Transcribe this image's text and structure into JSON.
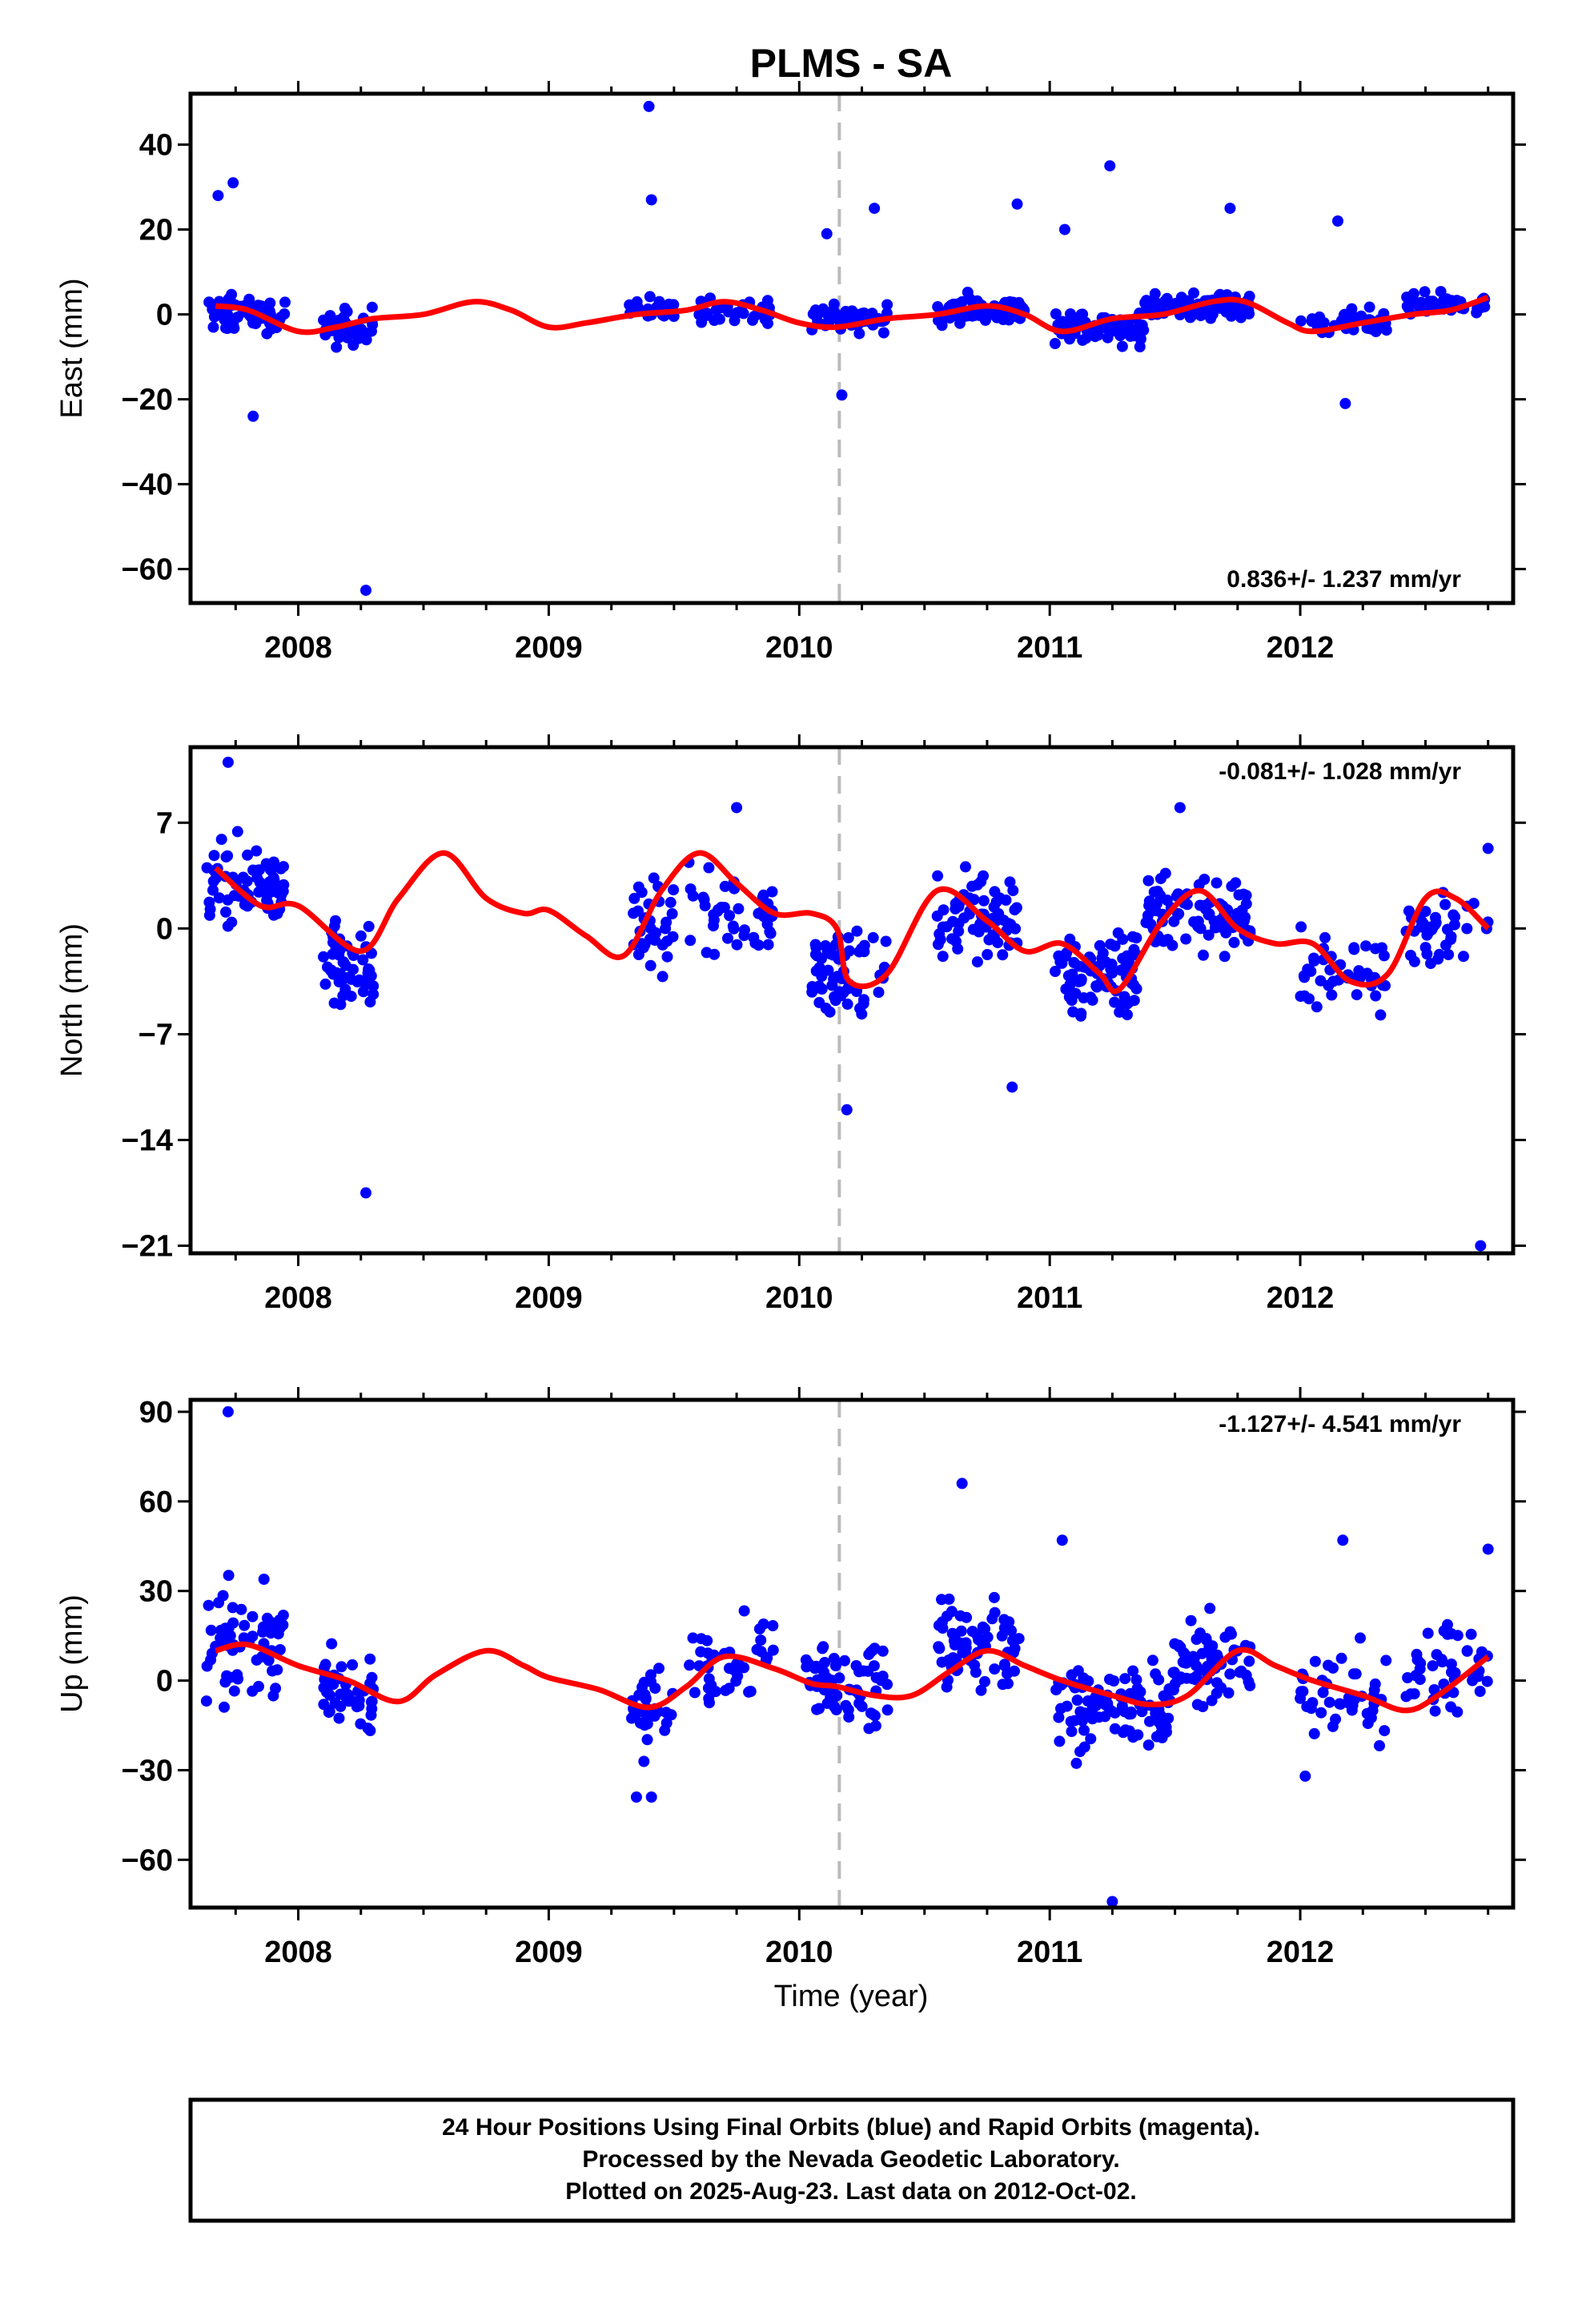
{
  "title": "PLMS - SA",
  "xlabel": "Time (year)",
  "footer_lines": [
    "24 Hour Positions Using Final Orbits (blue) and Rapid Orbits (magenta).",
    "Processed by the Nevada Geodetic Laboratory.",
    "Plotted on 2025-Aug-23. Last data on 2012-Oct-02."
  ],
  "colors": {
    "final_orbits": "#0000ff",
    "model": "#ff0000",
    "event_line": "#bbbbbb",
    "frame": "#000000"
  },
  "chart_data": [
    {
      "type": "scatter",
      "panel": "east",
      "ylabel": "East (mm)",
      "rate_text": "0.836+/- 1.237 mm/yr",
      "xlim": [
        2007.57,
        2012.85
      ],
      "ylim": [
        -68,
        52
      ],
      "yticks": [
        40,
        20,
        0,
        -20,
        -40,
        -60
      ],
      "ytick_labels": [
        "40",
        "20",
        "0",
        "−20",
        "−40",
        "−60"
      ],
      "xticks": [
        2008,
        2009,
        2010,
        2011,
        2012
      ],
      "xtick_labels": [
        "2008",
        "2009",
        "2010",
        "2011",
        "2012"
      ],
      "event_x": 2010.16,
      "outliers": [
        [
          2007.68,
          28
        ],
        [
          2007.74,
          31
        ],
        [
          2007.82,
          -24
        ],
        [
          2008.27,
          -65
        ],
        [
          2009.4,
          49
        ],
        [
          2009.41,
          27
        ],
        [
          2010.11,
          19
        ],
        [
          2010.17,
          -19
        ],
        [
          2010.3,
          25
        ],
        [
          2010.87,
          26
        ],
        [
          2011.06,
          20
        ],
        [
          2011.24,
          35
        ],
        [
          2011.72,
          25
        ],
        [
          2012.15,
          22
        ],
        [
          2012.18,
          -21
        ]
      ],
      "clusters": [
        {
          "x0": 2007.63,
          "x1": 2007.95,
          "center": 0,
          "spread": 9,
          "n": 60
        },
        {
          "x0": 2008.1,
          "x1": 2008.3,
          "center": -3,
          "spread": 9,
          "n": 45
        },
        {
          "x0": 2009.32,
          "x1": 2009.5,
          "center": 1,
          "spread": 6,
          "n": 30
        },
        {
          "x0": 2009.6,
          "x1": 2009.9,
          "center": 1,
          "spread": 6,
          "n": 35
        },
        {
          "x0": 2010.05,
          "x1": 2010.36,
          "center": -1,
          "spread": 7,
          "n": 50
        },
        {
          "x0": 2010.55,
          "x1": 2010.9,
          "center": 1,
          "spread": 7,
          "n": 70
        },
        {
          "x0": 2011.02,
          "x1": 2011.38,
          "center": -3,
          "spread": 8,
          "n": 80
        },
        {
          "x0": 2011.38,
          "x1": 2011.8,
          "center": 2,
          "spread": 6,
          "n": 90
        },
        {
          "x0": 2012.0,
          "x1": 2012.35,
          "center": -2,
          "spread": 7,
          "n": 40
        },
        {
          "x0": 2012.42,
          "x1": 2012.75,
          "center": 2,
          "spread": 6,
          "n": 45
        }
      ],
      "model": {
        "x": [
          2007.67,
          2007.8,
          2008.0,
          2008.15,
          2008.3,
          2008.5,
          2008.7,
          2008.85,
          2009.0,
          2009.15,
          2009.35,
          2009.55,
          2009.7,
          2009.85,
          2010.0,
          2010.15,
          2010.35,
          2010.55,
          2010.75,
          2010.9,
          2011.05,
          2011.25,
          2011.45,
          2011.65,
          2011.78,
          2011.95,
          2012.05,
          2012.25,
          2012.45,
          2012.6,
          2012.75
        ],
        "y": [
          2,
          1,
          -4,
          -3,
          -1,
          0,
          3,
          1,
          -3,
          -2,
          0,
          1,
          3,
          1,
          -2,
          -3,
          -1,
          0,
          2,
          0,
          -4,
          -1,
          0,
          3,
          3,
          -2,
          -4,
          -2,
          0,
          1,
          4
        ]
      }
    },
    {
      "type": "scatter",
      "panel": "north",
      "ylabel": "North (mm)",
      "rate_text": "-0.081+/- 1.028 mm/yr",
      "xlim": [
        2007.57,
        2012.85
      ],
      "ylim": [
        -21.5,
        12
      ],
      "yticks": [
        7,
        0,
        -7,
        -14,
        -21
      ],
      "ytick_labels": [
        "7",
        "0",
        "−7",
        "−14",
        "−21"
      ],
      "xticks": [
        2008,
        2009,
        2010,
        2011,
        2012
      ],
      "xtick_labels": [
        "2008",
        "2009",
        "2010",
        "2011",
        "2012"
      ],
      "event_x": 2010.16,
      "outliers": [
        [
          2007.72,
          11
        ],
        [
          2008.27,
          -17.5
        ],
        [
          2009.75,
          8
        ],
        [
          2010.19,
          -12
        ],
        [
          2010.85,
          -10.5
        ],
        [
          2011.52,
          8
        ],
        [
          2012.72,
          -21
        ],
        [
          2012.75,
          5.3
        ]
      ],
      "clusters": [
        {
          "x0": 2007.63,
          "x1": 2007.95,
          "center": 3,
          "spread": 6,
          "n": 70
        },
        {
          "x0": 2008.1,
          "x1": 2008.3,
          "center": -2.5,
          "spread": 6,
          "n": 55
        },
        {
          "x0": 2009.33,
          "x1": 2009.5,
          "center": 0,
          "spread": 6,
          "n": 35
        },
        {
          "x0": 2009.55,
          "x1": 2009.9,
          "center": 1,
          "spread": 6,
          "n": 45
        },
        {
          "x0": 2010.05,
          "x1": 2010.35,
          "center": -3,
          "spread": 6,
          "n": 60
        },
        {
          "x0": 2010.55,
          "x1": 2010.88,
          "center": 1,
          "spread": 6,
          "n": 70
        },
        {
          "x0": 2011.02,
          "x1": 2011.35,
          "center": -3,
          "spread": 7,
          "n": 80
        },
        {
          "x0": 2011.38,
          "x1": 2011.8,
          "center": 1,
          "spread": 6,
          "n": 90
        },
        {
          "x0": 2012.0,
          "x1": 2012.35,
          "center": -3,
          "spread": 6,
          "n": 45
        },
        {
          "x0": 2012.42,
          "x1": 2012.75,
          "center": 0,
          "spread": 5,
          "n": 40
        }
      ],
      "model": {
        "x": [
          2007.67,
          2007.85,
          2008.0,
          2008.25,
          2008.4,
          2008.58,
          2008.75,
          2008.9,
          2009.0,
          2009.15,
          2009.3,
          2009.45,
          2009.6,
          2009.75,
          2009.9,
          2010.05,
          2010.15,
          2010.2,
          2010.35,
          2010.55,
          2010.75,
          2010.9,
          2011.05,
          2011.2,
          2011.28,
          2011.45,
          2011.6,
          2011.75,
          2011.9,
          2012.05,
          2012.2,
          2012.35,
          2012.5,
          2012.62,
          2012.75
        ],
        "y": [
          4,
          1.5,
          1.5,
          -1.5,
          2,
          5,
          2,
          1,
          1.2,
          -0.5,
          -1.8,
          2.5,
          5,
          3,
          1,
          1,
          0,
          -3.5,
          -3,
          2.5,
          0.5,
          -1.5,
          -1,
          -3,
          -4,
          0.5,
          2.5,
          0,
          -1,
          -1,
          -3.5,
          -3,
          2,
          2,
          0
        ]
      }
    },
    {
      "type": "scatter",
      "panel": "up",
      "ylabel": "Up (mm)",
      "rate_text": "-1.127+/- 4.541 mm/yr",
      "xlim": [
        2007.57,
        2012.85
      ],
      "ylim": [
        -76,
        94
      ],
      "yticks": [
        90,
        60,
        30,
        0,
        -30,
        -60
      ],
      "ytick_labels": [
        "90",
        "60",
        "30",
        "0",
        "−30",
        "−60"
      ],
      "xticks": [
        2008,
        2009,
        2010,
        2011,
        2012
      ],
      "xtick_labels": [
        "2008",
        "2009",
        "2010",
        "2011",
        "2012"
      ],
      "event_x": 2010.16,
      "outliers": [
        [
          2007.72,
          90
        ],
        [
          2010.65,
          66
        ],
        [
          2011.25,
          -74
        ],
        [
          2011.05,
          47
        ],
        [
          2012.17,
          47
        ],
        [
          2009.35,
          -39
        ],
        [
          2009.41,
          -39
        ],
        [
          2012.02,
          -32
        ],
        [
          2012.75,
          44
        ]
      ],
      "clusters": [
        {
          "x0": 2007.63,
          "x1": 2007.95,
          "center": 12,
          "spread": 35,
          "n": 70
        },
        {
          "x0": 2008.1,
          "x1": 2008.3,
          "center": -5,
          "spread": 30,
          "n": 45
        },
        {
          "x0": 2009.33,
          "x1": 2009.5,
          "center": -10,
          "spread": 30,
          "n": 35
        },
        {
          "x0": 2009.55,
          "x1": 2009.9,
          "center": 8,
          "spread": 28,
          "n": 45
        },
        {
          "x0": 2010.02,
          "x1": 2010.36,
          "center": 0,
          "spread": 30,
          "n": 65
        },
        {
          "x0": 2010.55,
          "x1": 2010.88,
          "center": 12,
          "spread": 35,
          "n": 70
        },
        {
          "x0": 2011.02,
          "x1": 2011.48,
          "center": -10,
          "spread": 30,
          "n": 100
        },
        {
          "x0": 2011.48,
          "x1": 2011.8,
          "center": 5,
          "spread": 30,
          "n": 70
        },
        {
          "x0": 2012.0,
          "x1": 2012.35,
          "center": -5,
          "spread": 30,
          "n": 45
        },
        {
          "x0": 2012.42,
          "x1": 2012.75,
          "center": 5,
          "spread": 30,
          "n": 45
        }
      ],
      "model": {
        "x": [
          2007.67,
          2007.8,
          2008.0,
          2008.2,
          2008.4,
          2008.55,
          2008.75,
          2008.9,
          2009.0,
          2009.2,
          2009.4,
          2009.55,
          2009.7,
          2009.9,
          2010.05,
          2010.15,
          2010.3,
          2010.45,
          2010.6,
          2010.75,
          2010.9,
          2011.05,
          2011.25,
          2011.4,
          2011.55,
          2011.75,
          2011.9,
          2012.05,
          2012.25,
          2012.42,
          2012.55,
          2012.75
        ],
        "y": [
          10,
          12,
          5,
          0,
          -7,
          2,
          10,
          5,
          1,
          -3,
          -9,
          -2,
          8,
          4,
          -1,
          -2,
          -5,
          -5,
          3,
          10,
          5,
          0,
          -5,
          -8,
          -5,
          10,
          5,
          0,
          -5,
          -10,
          -5,
          8
        ]
      }
    }
  ]
}
